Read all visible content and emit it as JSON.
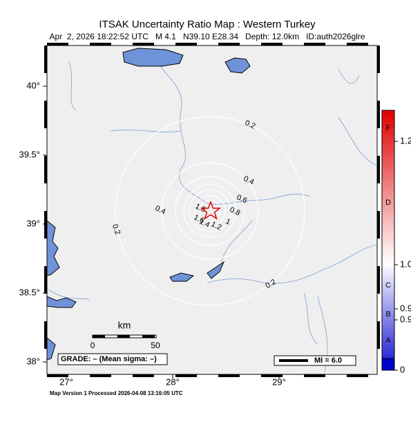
{
  "title": "ITSAK Uncertainty Ratio Map : Western Turkey",
  "subtitle": "Apr  2, 2026 18:22:52 UTC   M 4.1   N39.10 E28.34   Depth: 12.0km   ID:auth2026glre",
  "lat_ticks": [
    {
      "value": 40,
      "label": "40°"
    },
    {
      "value": 39.5,
      "label": "39.5°"
    },
    {
      "value": 39,
      "label": "39°"
    },
    {
      "value": 38.5,
      "label": "38.5°"
    },
    {
      "value": 38,
      "label": "38°"
    }
  ],
  "lon_ticks": [
    {
      "value": 27,
      "label": "27°"
    },
    {
      "value": 28,
      "label": "28°"
    },
    {
      "value": 29,
      "label": "29°"
    }
  ],
  "contour_labels": [
    "0.2",
    "0.2",
    "0.2",
    "0.4",
    "0.4",
    "0.6",
    "0.8",
    "1",
    "1.2",
    "1.4",
    "1.6",
    "1.8"
  ],
  "scale": {
    "title": "km",
    "labels": [
      "0",
      "50"
    ]
  },
  "grade": "GRADE: – (Mean sigma: –)",
  "mi": "MI = 6.0",
  "colorbar": {
    "grades": [
      "F",
      "D",
      "C",
      "B",
      "A"
    ],
    "labels": [
      "1.2",
      "1.0",
      "0.9",
      "0.9",
      "0"
    ]
  },
  "footer": "Map Version 1 Processed 2026-04-08 13:16:05 UTC"
}
